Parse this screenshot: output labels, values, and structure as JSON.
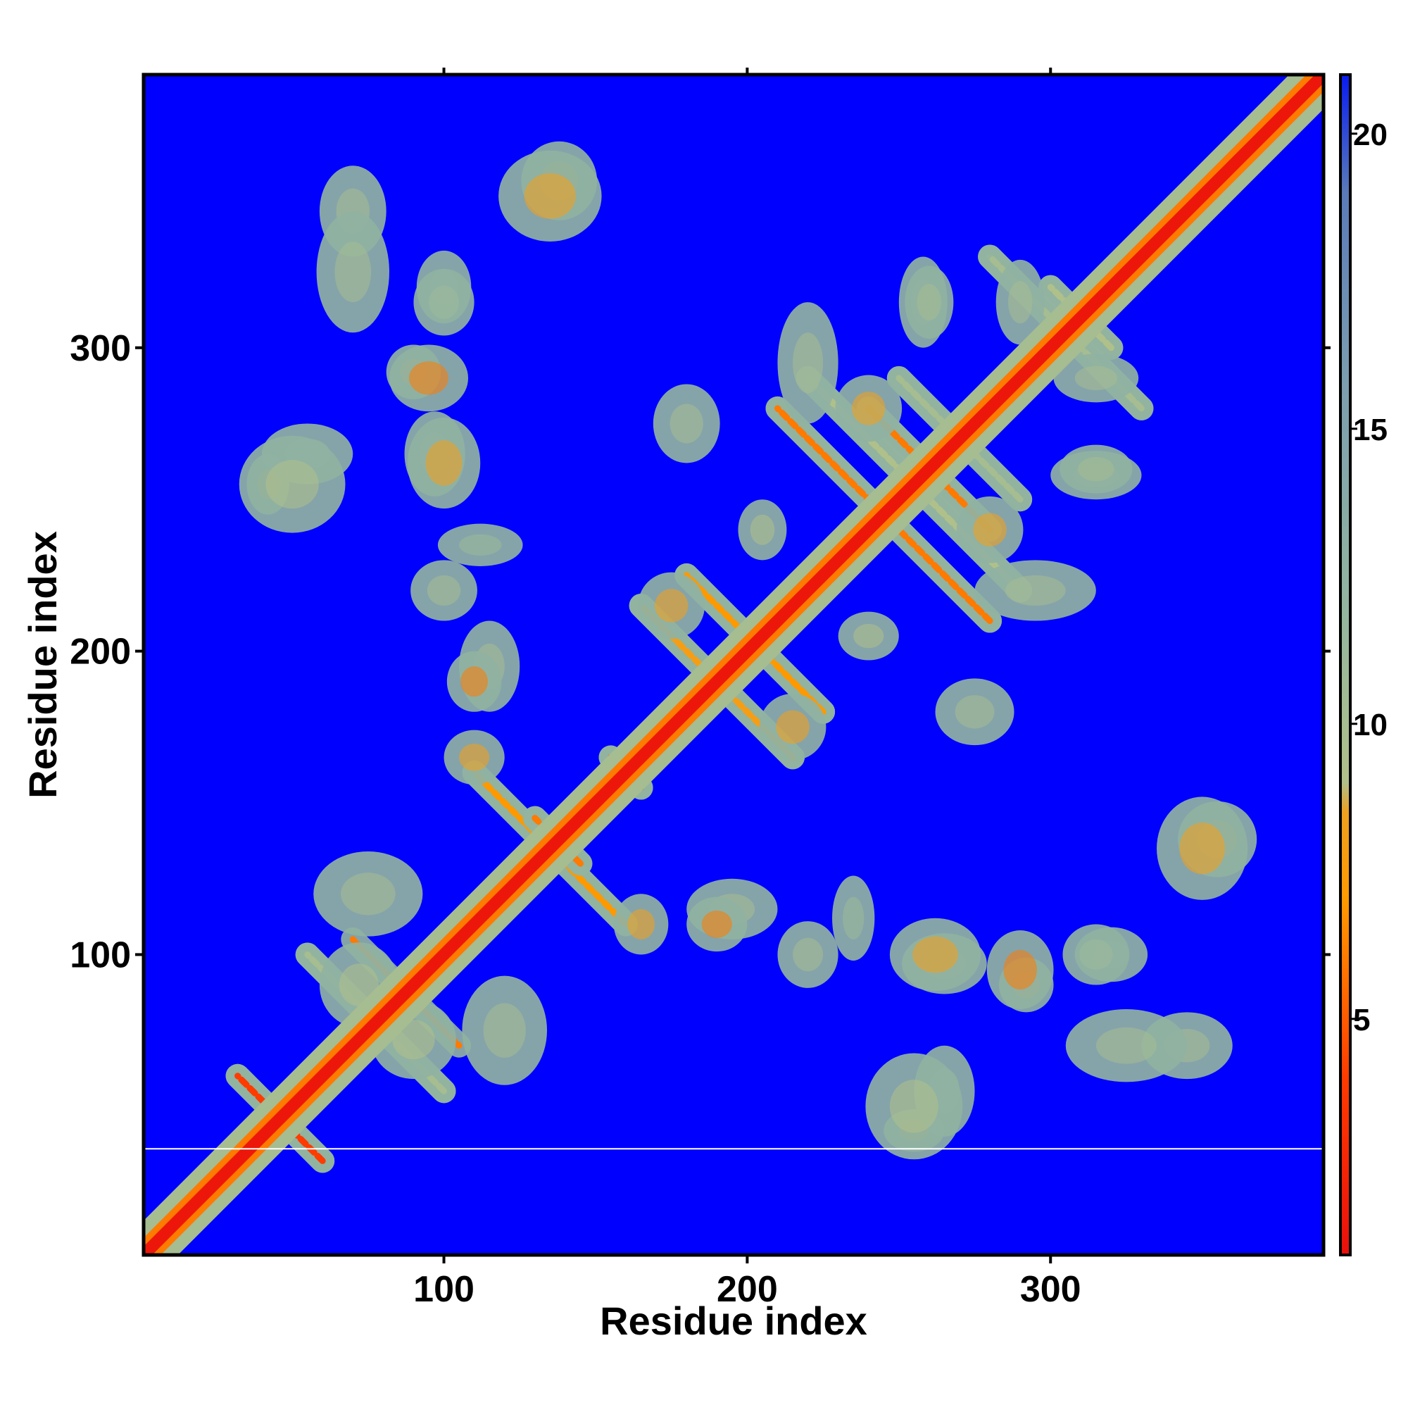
{
  "chart_data": {
    "type": "heatmap",
    "subtype": "distance map (symmetric)",
    "xlabel": "Residue index",
    "ylabel": "Residue index",
    "xlim": [
      1,
      390
    ],
    "ylim": [
      1,
      390
    ],
    "x_ticks": [
      100,
      200,
      300
    ],
    "y_ticks": [
      100,
      200,
      300
    ],
    "colorbar": {
      "min": 1,
      "max": 21,
      "ticks": [
        5,
        10,
        15,
        20
      ],
      "stops": [
        {
          "value": 1,
          "color": "#e8100c"
        },
        {
          "value": 4,
          "color": "#ff3b00"
        },
        {
          "value": 7,
          "color": "#ff9900"
        },
        {
          "value": 8.5,
          "color": "#f0a020"
        },
        {
          "value": 9,
          "color": "#b0c08a"
        },
        {
          "value": 12,
          "color": "#93b5a0"
        },
        {
          "value": 16,
          "color": "#7a9cb0"
        },
        {
          "value": 19,
          "color": "#5a7ab8"
        },
        {
          "value": 21,
          "color": "#0a1cf0"
        }
      ]
    },
    "background_value": 21,
    "background_color": "#0000ff",
    "diagonal": {
      "core_value": 1.5,
      "shoulder_value": 10,
      "core_halfwidth": 2,
      "halo_halfwidth": 8
    },
    "contact_bands": [
      {
        "x1": 32,
        "y1": 60,
        "x2": 60,
        "y2": 32,
        "value": 4
      },
      {
        "x1": 55,
        "y1": 100,
        "x2": 100,
        "y2": 55,
        "value": 10
      },
      {
        "x1": 85,
        "y1": 90,
        "x2": 105,
        "y2": 70,
        "value": 6
      },
      {
        "x1": 110,
        "y1": 160,
        "x2": 160,
        "y2": 110,
        "value": 7
      },
      {
        "x1": 130,
        "y1": 145,
        "x2": 145,
        "y2": 130,
        "value": 6
      },
      {
        "x1": 155,
        "y1": 165,
        "x2": 165,
        "y2": 155,
        "value": 5
      },
      {
        "x1": 165,
        "y1": 215,
        "x2": 215,
        "y2": 165,
        "value": 8
      },
      {
        "x1": 180,
        "y1": 225,
        "x2": 225,
        "y2": 180,
        "value": 7
      },
      {
        "x1": 210,
        "y1": 280,
        "x2": 280,
        "y2": 210,
        "value": 6
      },
      {
        "x1": 220,
        "y1": 290,
        "x2": 290,
        "y2": 220,
        "value": 9
      },
      {
        "x1": 240,
        "y1": 280,
        "x2": 280,
        "y2": 240,
        "value": 6
      },
      {
        "x1": 250,
        "y1": 290,
        "x2": 290,
        "y2": 250,
        "value": 10
      },
      {
        "x1": 280,
        "y1": 330,
        "x2": 330,
        "y2": 280,
        "value": 10
      },
      {
        "x1": 300,
        "y1": 320,
        "x2": 320,
        "y2": 300,
        "value": 9
      }
    ],
    "contact_blobs": [
      {
        "x": 42,
        "y": 255,
        "w": 14,
        "h": 20,
        "value": 8
      },
      {
        "x": 55,
        "y": 265,
        "w": 30,
        "h": 20,
        "value": 11
      },
      {
        "x": 70,
        "y": 345,
        "w": 22,
        "h": 30,
        "value": 10
      },
      {
        "x": 90,
        "y": 292,
        "w": 18,
        "h": 18,
        "value": 7
      },
      {
        "x": 97,
        "y": 265,
        "w": 20,
        "h": 28,
        "value": 9
      },
      {
        "x": 100,
        "y": 320,
        "w": 18,
        "h": 24,
        "value": 11
      },
      {
        "x": 138,
        "y": 355,
        "w": 25,
        "h": 26,
        "value": 8
      },
      {
        "x": 115,
        "y": 195,
        "w": 20,
        "h": 30,
        "value": 10
      },
      {
        "x": 112,
        "y": 235,
        "w": 28,
        "h": 14,
        "value": 11
      },
      {
        "x": 120,
        "y": 75,
        "w": 28,
        "h": 36,
        "value": 10
      },
      {
        "x": 90,
        "y": 72,
        "w": 28,
        "h": 26,
        "value": 9
      },
      {
        "x": 165,
        "y": 110,
        "w": 18,
        "h": 20,
        "value": 8
      },
      {
        "x": 190,
        "y": 110,
        "w": 20,
        "h": 18,
        "value": 6
      },
      {
        "x": 220,
        "y": 100,
        "w": 20,
        "h": 22,
        "value": 10
      },
      {
        "x": 180,
        "y": 275,
        "w": 22,
        "h": 26,
        "value": 10
      },
      {
        "x": 220,
        "y": 295,
        "w": 20,
        "h": 40,
        "value": 10
      },
      {
        "x": 258,
        "y": 315,
        "w": 16,
        "h": 30,
        "value": 9
      },
      {
        "x": 215,
        "y": 175,
        "w": 22,
        "h": 22,
        "value": 8
      },
      {
        "x": 240,
        "y": 205,
        "w": 20,
        "h": 16,
        "value": 9
      },
      {
        "x": 262,
        "y": 100,
        "w": 30,
        "h": 24,
        "value": 8
      },
      {
        "x": 290,
        "y": 95,
        "w": 22,
        "h": 26,
        "value": 6
      },
      {
        "x": 255,
        "y": 50,
        "w": 32,
        "h": 35,
        "value": 9
      },
      {
        "x": 325,
        "y": 70,
        "w": 40,
        "h": 24,
        "value": 10
      },
      {
        "x": 315,
        "y": 100,
        "w": 22,
        "h": 20,
        "value": 11
      },
      {
        "x": 350,
        "y": 135,
        "w": 30,
        "h": 34,
        "value": 8
      },
      {
        "x": 315,
        "y": 260,
        "w": 24,
        "h": 16,
        "value": 10
      },
      {
        "x": 280,
        "y": 240,
        "w": 22,
        "h": 22,
        "value": 8
      },
      {
        "x": 290,
        "y": 315,
        "w": 16,
        "h": 28,
        "value": 10
      }
    ],
    "horizontal_line": {
      "y": 36,
      "color": "#ffffff"
    }
  }
}
